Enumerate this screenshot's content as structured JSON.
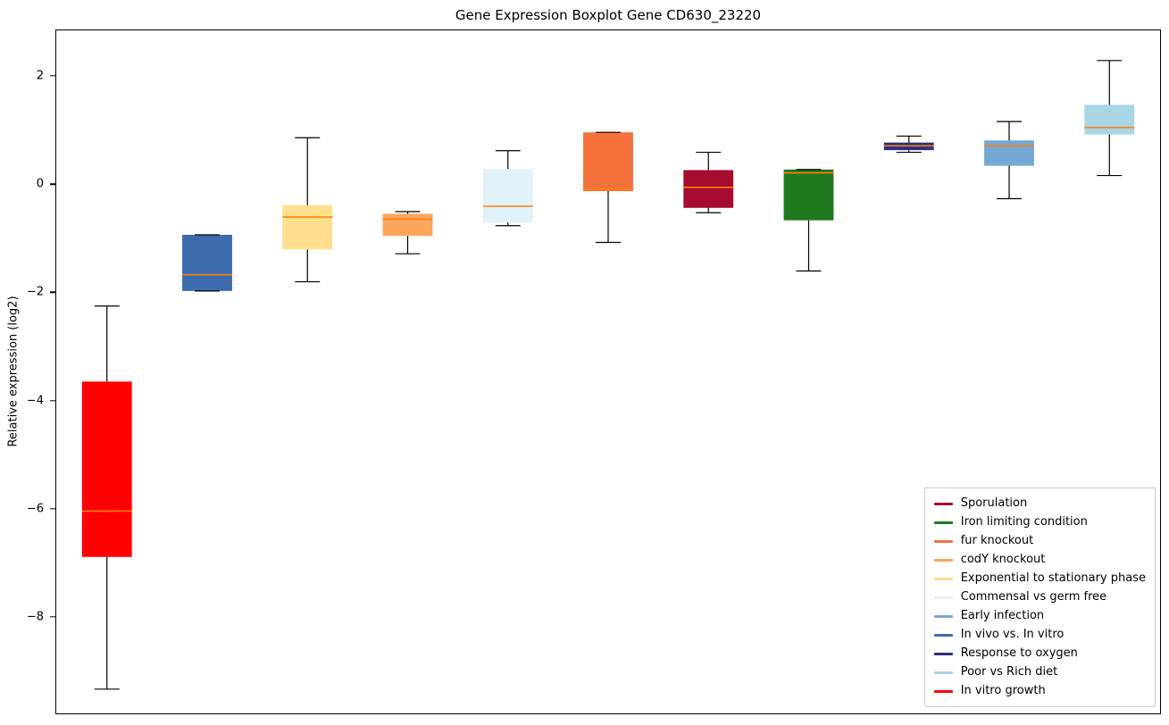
{
  "chart_data": {
    "type": "boxplot",
    "title": "Gene Expression Boxplot Gene CD630_23220",
    "xlabel": "",
    "ylabel": "Relative expression (log2)",
    "ylim": [
      -9.8,
      2.86
    ],
    "yticks": [
      2,
      0,
      -2,
      -4,
      -6,
      -8
    ],
    "grid": false,
    "median_color": "#ff7f0e",
    "series": [
      {
        "name": "In vitro growth",
        "color": "#ff0000",
        "whislo": -9.35,
        "q1": -6.9,
        "med": -6.05,
        "q3": -3.65,
        "whishi": -2.25
      },
      {
        "name": "In vivo vs. In vitro",
        "color": "#3b6bac",
        "whislo": -1.97,
        "q1": -1.97,
        "med": -1.67,
        "q3": -0.93,
        "whishi": -0.93
      },
      {
        "name": "Exponential to stationary phase",
        "color": "#ffdf8e",
        "whislo": -1.8,
        "q1": -1.2,
        "med": -0.6,
        "q3": -0.38,
        "whishi": 0.87
      },
      {
        "name": "codY knockout",
        "color": "#fca55d",
        "whislo": -1.28,
        "q1": -0.95,
        "med": -0.64,
        "q3": -0.54,
        "whishi": -0.5
      },
      {
        "name": "Commensal vs germ free",
        "color": "#e1f2f8",
        "whislo": -0.76,
        "q1": -0.7,
        "med": -0.4,
        "q3": 0.29,
        "whishi": 0.63
      },
      {
        "name": "fur knockout",
        "color": "#f4713b",
        "whislo": -1.07,
        "q1": -0.12,
        "med": -0.08,
        "q3": 0.97,
        "whishi": 0.97
      },
      {
        "name": "Sporulation",
        "color": "#a50c2f",
        "whislo": -0.52,
        "q1": -0.43,
        "med": -0.05,
        "q3": 0.27,
        "whishi": 0.6
      },
      {
        "name": "Iron limiting condition",
        "color": "#1e781e",
        "whislo": -1.6,
        "q1": -0.66,
        "med": 0.22,
        "q3": 0.28,
        "whishi": 0.28
      },
      {
        "name": "Response to oxygen",
        "color": "#2b2f81",
        "whislo": 0.6,
        "q1": 0.64,
        "med": 0.72,
        "q3": 0.78,
        "whishi": 0.9
      },
      {
        "name": "Early infection",
        "color": "#74a9d6",
        "whislo": -0.26,
        "q1": 0.35,
        "med": 0.72,
        "q3": 0.82,
        "whishi": 1.17
      },
      {
        "name": "Poor vs Rich diet",
        "color": "#a9d5e5",
        "whislo": 0.17,
        "q1": 0.93,
        "med": 1.06,
        "q3": 1.48,
        "whishi": 2.3
      }
    ],
    "legend": {
      "position": "lower right",
      "entries": [
        {
          "label": "Sporulation",
          "color": "#a50c2f"
        },
        {
          "label": "Iron limiting condition",
          "color": "#1e781e"
        },
        {
          "label": "fur knockout",
          "color": "#f4713b"
        },
        {
          "label": "codY knockout",
          "color": "#fca55d"
        },
        {
          "label": "Exponential to stationary phase",
          "color": "#ffdf8e"
        },
        {
          "label": "Commensal vs germ free",
          "color": "#e1f2f8"
        },
        {
          "label": "Early infection",
          "color": "#74a9d6"
        },
        {
          "label": "In vivo vs. In vitro",
          "color": "#3b6bac"
        },
        {
          "label": "Response to oxygen",
          "color": "#2b2f81"
        },
        {
          "label": "Poor vs Rich diet",
          "color": "#a9d5e5"
        },
        {
          "label": "In vitro growth",
          "color": "#ff0000"
        }
      ]
    }
  }
}
